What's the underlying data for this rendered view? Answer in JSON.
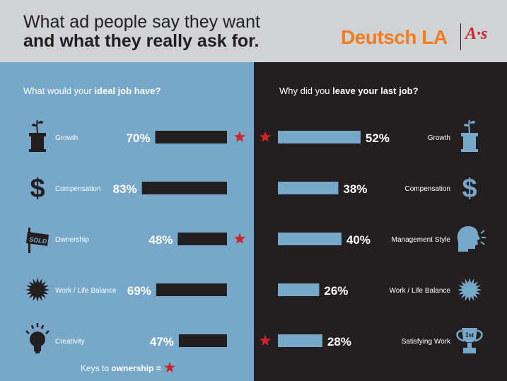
{
  "header": {
    "title_line1": "What ad people say they want",
    "title_line2": "and what they really ask for.",
    "brand": "Deutsch LA",
    "brand_badge": "A·s",
    "brand_color": "#ef7d22",
    "badge_color": "#cf2229"
  },
  "colors": {
    "left_bg": "#77a8c9",
    "right_bg": "#231f20",
    "left_bar": "#231f20",
    "right_bar": "#77a8c9",
    "star": "#cf2229"
  },
  "keys": {
    "prefix": "Keys to ",
    "bold": "ownership =",
    "icon": "star-icon"
  },
  "chart_data": [
    {
      "type": "bar",
      "title_prefix": "What would your ",
      "title_bold": "ideal job have?",
      "categories": [
        "Growth",
        "Compensation",
        "Ownership",
        "Work / Life Balance",
        "Creativity"
      ],
      "values": [
        70,
        83,
        48,
        69,
        47
      ],
      "value_labels": [
        "70%",
        "83%",
        "48%",
        "69%",
        "47%"
      ],
      "starred": [
        true,
        false,
        true,
        false,
        false
      ],
      "icons": [
        "plant-pedestal-icon",
        "dollar-icon",
        "sold-sign-icon",
        "sun-icon",
        "lightbulb-icon"
      ],
      "xlim": [
        0,
        100
      ]
    },
    {
      "type": "bar",
      "title_prefix": "Why did you ",
      "title_bold": "leave your last job?",
      "categories": [
        "Growth",
        "Compensation",
        "Management Style",
        "Work / Life Balance",
        "Satisfying Work"
      ],
      "values": [
        52,
        38,
        40,
        26,
        28
      ],
      "value_labels": [
        "52%",
        "38%",
        "40%",
        "26%",
        "28%"
      ],
      "starred": [
        true,
        false,
        false,
        false,
        true
      ],
      "icons": [
        "plant-pedestal-icon",
        "dollar-icon",
        "shouting-head-icon",
        "sun-icon",
        "trophy-icon"
      ],
      "xlim": [
        0,
        100
      ]
    }
  ]
}
